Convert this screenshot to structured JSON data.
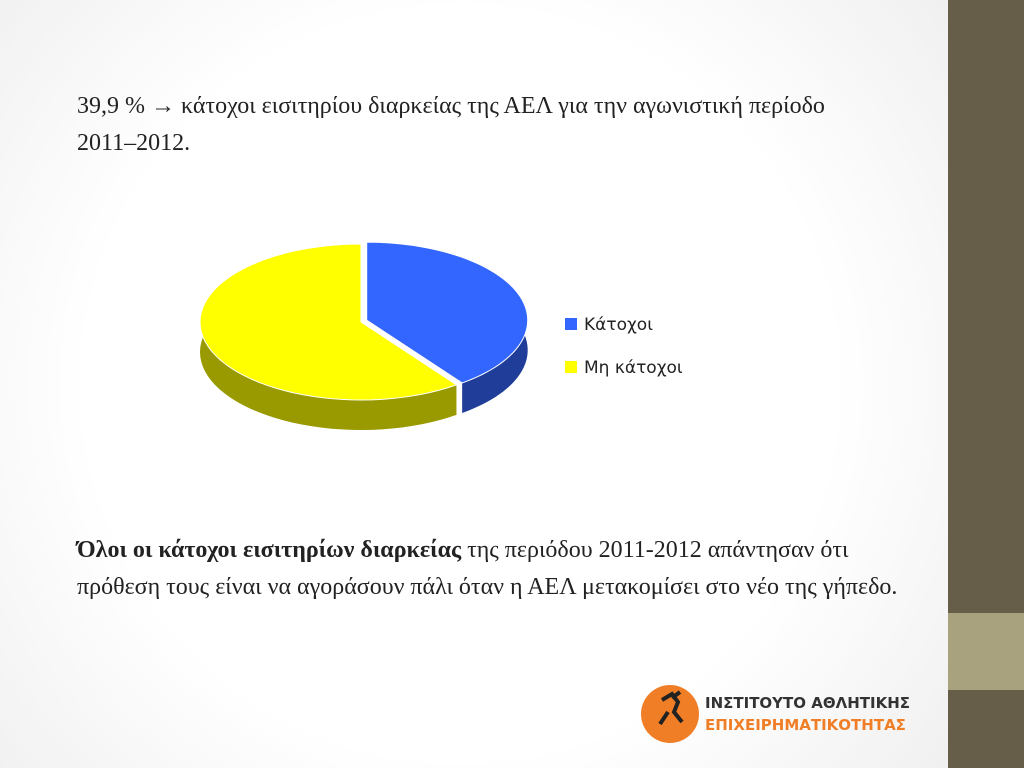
{
  "chart_data": {
    "type": "pie",
    "categories": [
      "Κάτοχοι",
      "Μη κάτοχοι"
    ],
    "values": [
      39.9,
      60.1
    ],
    "colors": [
      "#3366ff",
      "#ffff00"
    ],
    "legend": "right"
  },
  "slide": {
    "intro": "39,9 % → κάτοχοι εισιτηρίου διαρκείας της ΑΕΛ για την αγωνιστική περίοδο 2011–2012.",
    "conclusion_bold": "Όλοι οι κάτοχοι εισιτηρίων διαρκείας",
    "conclusion_rest": " της περιόδου 2011-2012 απάντησαν ότι πρόθεση τους είναι να αγοράσουν πάλι όταν η ΑΕΛ μετακομίσει στο νέο της γήπεδο.",
    "logo_line1": "ΙΝΣΤΙΤΟΥΤΟ ΑΘΛΗΤΙΚΗΣ",
    "logo_line2": "ΕΠΙΧΕΙΡΗΜΑΤΙΚΟΤΗΤΑΣ"
  }
}
